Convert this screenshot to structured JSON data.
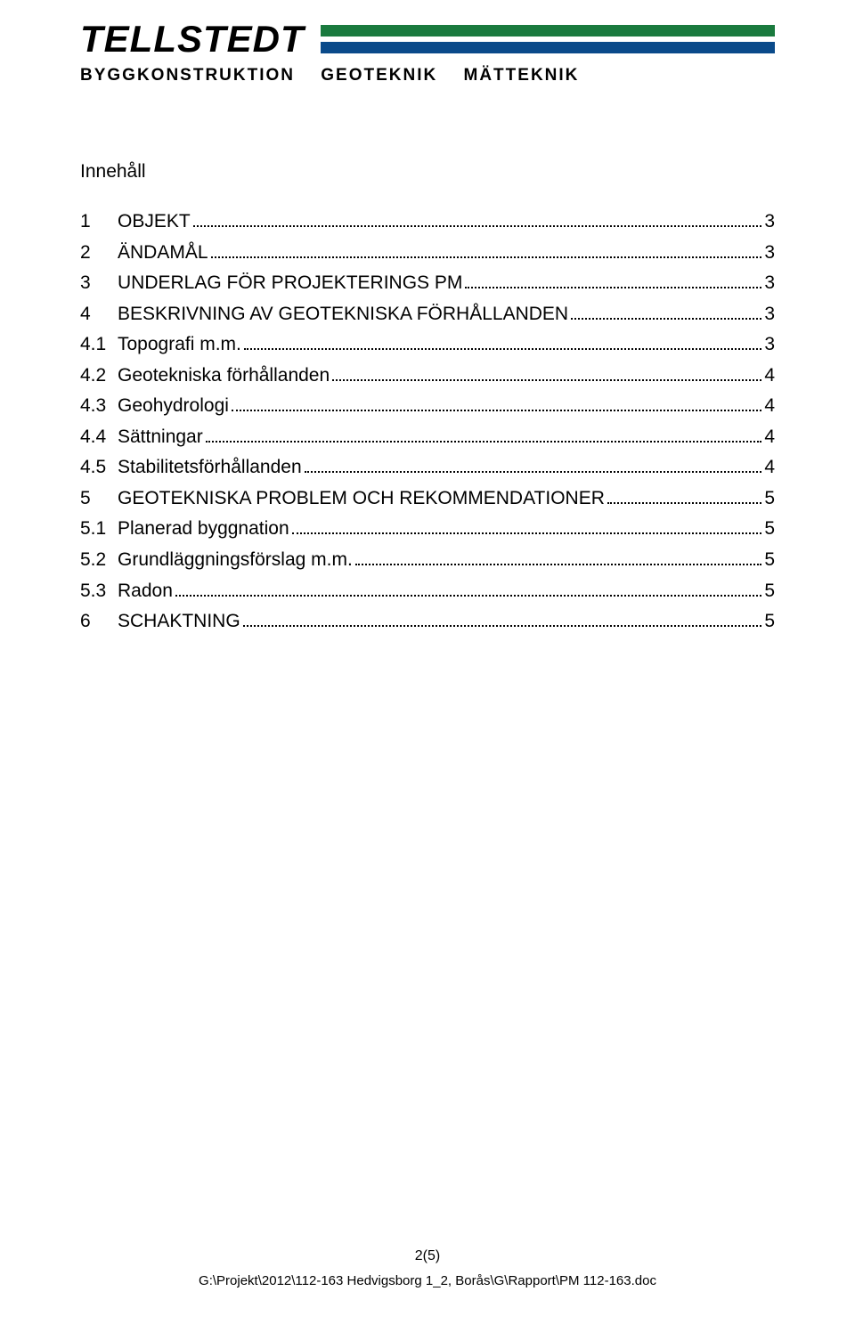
{
  "header": {
    "company": "TELLSTEDT",
    "subline": "BYGGKONSTRUKTION GEOTEKNIK MÄTTEKNIK",
    "bar_color_top": "#1a7a3e",
    "bar_color_bottom": "#0a4a8a"
  },
  "toc": {
    "title": "Innehåll",
    "items": [
      {
        "num": "1",
        "label": "OBJEKT",
        "page": "3",
        "level": 1
      },
      {
        "num": "2",
        "label": "ÄNDAMÅL",
        "page": "3",
        "level": 1
      },
      {
        "num": "3",
        "label": "UNDERLAG FÖR PROJEKTERINGS PM",
        "page": "3",
        "level": 1
      },
      {
        "num": "4",
        "label": "BESKRIVNING AV GEOTEKNISKA FÖRHÅLLANDEN",
        "page": "3",
        "level": 1
      },
      {
        "num": "4.1",
        "label": "Topografi m.m.",
        "page": "3",
        "level": 2
      },
      {
        "num": "4.2",
        "label": "Geotekniska förhållanden",
        "page": "4",
        "level": 2
      },
      {
        "num": "4.3",
        "label": "Geohydrologi",
        "page": "4",
        "level": 2
      },
      {
        "num": "4.4",
        "label": "Sättningar",
        "page": "4",
        "level": 2
      },
      {
        "num": "4.5",
        "label": "Stabilitetsförhållanden",
        "page": "4",
        "level": 2
      },
      {
        "num": "5",
        "label": "GEOTEKNISKA PROBLEM OCH REKOMMENDATIONER",
        "page": "5",
        "level": 1
      },
      {
        "num": "5.1",
        "label": "Planerad byggnation",
        "page": "5",
        "level": 2
      },
      {
        "num": "5.2",
        "label": "Grundläggningsförslag m.m.",
        "page": "5",
        "level": 2
      },
      {
        "num": "5.3",
        "label": "Radon",
        "page": "5",
        "level": 2
      },
      {
        "num": "6",
        "label": "SCHAKTNING",
        "page": "5",
        "level": 1
      }
    ]
  },
  "footer": {
    "page_indicator": "2(5)",
    "path": "G:\\Projekt\\2012\\112-163 Hedvigsborg 1_2, Borås\\G\\Rapport\\PM 112-163.doc"
  }
}
